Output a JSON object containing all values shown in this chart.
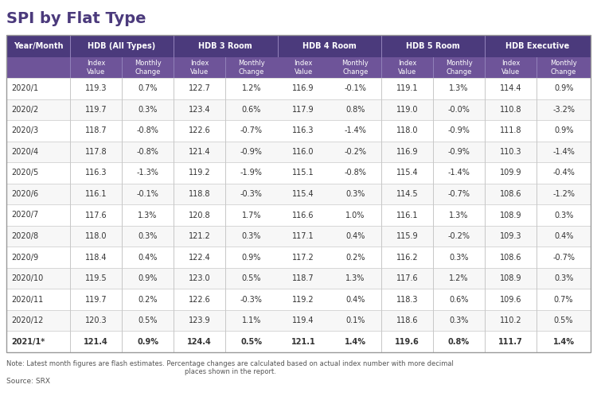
{
  "title": "SPI by Flat Type",
  "groups": [
    {
      "label": "Year/Month",
      "cols": 1
    },
    {
      "label": "HDB (All Types)",
      "cols": 2
    },
    {
      "label": "HDB 3 Room",
      "cols": 2
    },
    {
      "label": "HDB 4 Room",
      "cols": 2
    },
    {
      "label": "HDB 5 Room",
      "cols": 2
    },
    {
      "label": "HDB Executive",
      "cols": 2
    }
  ],
  "sub_headers": [
    "",
    "Index\nValue",
    "Monthly\nChange",
    "Index\nValue",
    "Monthly\nChange",
    "Index\nValue",
    "Monthly\nChange",
    "Index\nValue",
    "Monthly\nChange",
    "Index\nValue",
    "Monthly\nChange"
  ],
  "rows": [
    [
      "2020/1",
      "119.3",
      "0.7%",
      "122.7",
      "1.2%",
      "116.9",
      "-0.1%",
      "119.1",
      "1.3%",
      "114.4",
      "0.9%"
    ],
    [
      "2020/2",
      "119.7",
      "0.3%",
      "123.4",
      "0.6%",
      "117.9",
      "0.8%",
      "119.0",
      "-0.0%",
      "110.8",
      "-3.2%"
    ],
    [
      "2020/3",
      "118.7",
      "-0.8%",
      "122.6",
      "-0.7%",
      "116.3",
      "-1.4%",
      "118.0",
      "-0.9%",
      "111.8",
      "0.9%"
    ],
    [
      "2020/4",
      "117.8",
      "-0.8%",
      "121.4",
      "-0.9%",
      "116.0",
      "-0.2%",
      "116.9",
      "-0.9%",
      "110.3",
      "-1.4%"
    ],
    [
      "2020/5",
      "116.3",
      "-1.3%",
      "119.2",
      "-1.9%",
      "115.1",
      "-0.8%",
      "115.4",
      "-1.4%",
      "109.9",
      "-0.4%"
    ],
    [
      "2020/6",
      "116.1",
      "-0.1%",
      "118.8",
      "-0.3%",
      "115.4",
      "0.3%",
      "114.5",
      "-0.7%",
      "108.6",
      "-1.2%"
    ],
    [
      "2020/7",
      "117.6",
      "1.3%",
      "120.8",
      "1.7%",
      "116.6",
      "1.0%",
      "116.1",
      "1.3%",
      "108.9",
      "0.3%"
    ],
    [
      "2020/8",
      "118.0",
      "0.3%",
      "121.2",
      "0.3%",
      "117.1",
      "0.4%",
      "115.9",
      "-0.2%",
      "109.3",
      "0.4%"
    ],
    [
      "2020/9",
      "118.4",
      "0.4%",
      "122.4",
      "0.9%",
      "117.2",
      "0.2%",
      "116.2",
      "0.3%",
      "108.6",
      "-0.7%"
    ],
    [
      "2020/10",
      "119.5",
      "0.9%",
      "123.0",
      "0.5%",
      "118.7",
      "1.3%",
      "117.6",
      "1.2%",
      "108.9",
      "0.3%"
    ],
    [
      "2020/11",
      "119.7",
      "0.2%",
      "122.6",
      "-0.3%",
      "119.2",
      "0.4%",
      "118.3",
      "0.6%",
      "109.6",
      "0.7%"
    ],
    [
      "2020/12",
      "120.3",
      "0.5%",
      "123.9",
      "1.1%",
      "119.4",
      "0.1%",
      "118.6",
      "0.3%",
      "110.2",
      "0.5%"
    ],
    [
      "2021/1*",
      "121.4",
      "0.9%",
      "124.4",
      "0.5%",
      "121.1",
      "1.4%",
      "119.6",
      "0.8%",
      "111.7",
      "1.4%"
    ]
  ],
  "header_bg": "#4b3a7c",
  "header_text": "#ffffff",
  "subheader_bg": "#6e5499",
  "subheader_text": "#ffffff",
  "row_bg_odd": "#ffffff",
  "row_bg_even": "#f7f7f7",
  "row_text": "#333333",
  "sep_color": "#8a70b0",
  "cell_border": "#d0d0d0",
  "title_color": "#4b3a7c",
  "note_text": "Note: Latest month figures are flash estimates. Percentage changes are calculated based on actual index number with more decimal\nplaces shown in the report.",
  "source_text": "Source: SRX"
}
